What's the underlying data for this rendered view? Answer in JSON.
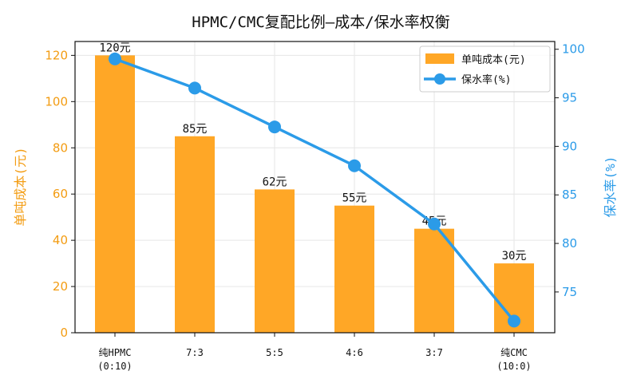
{
  "chart_data": {
    "type": "bar+line",
    "title": "HPMC/CMC复配比例—成本/保水率权衡",
    "categories": [
      [
        "纯HPMC",
        "(0:10)"
      ],
      [
        "7:3"
      ],
      [
        "5:5"
      ],
      [
        "4:6"
      ],
      [
        "3:7"
      ],
      [
        "纯CMC",
        "(10:0)"
      ]
    ],
    "series": [
      {
        "name": "单吨成本(元)",
        "type": "bar",
        "axis": "left",
        "values": [
          120,
          85,
          62,
          55,
          45,
          30
        ],
        "labels": [
          "120元",
          "85元",
          "62元",
          "55元",
          "45元",
          "30元"
        ],
        "color": "#ffa726"
      },
      {
        "name": "保水率(%)",
        "type": "line",
        "axis": "right",
        "values": [
          99,
          96,
          92,
          88,
          82,
          72
        ],
        "color": "#2b9be8"
      }
    ],
    "ylabel_left": "单吨成本(元)",
    "ylabel_right": "保水率(%)",
    "ylim_left": [
      0,
      126
    ],
    "yticks_left": [
      0,
      20,
      40,
      60,
      80,
      100,
      120
    ],
    "ylim_right": [
      70.8,
      100.8
    ],
    "yticks_right": [
      75,
      80,
      85,
      90,
      95,
      100
    ],
    "left_axis_color": "#f39c12",
    "right_axis_color": "#2b9be8",
    "grid": true,
    "legend_position": "top-right"
  }
}
